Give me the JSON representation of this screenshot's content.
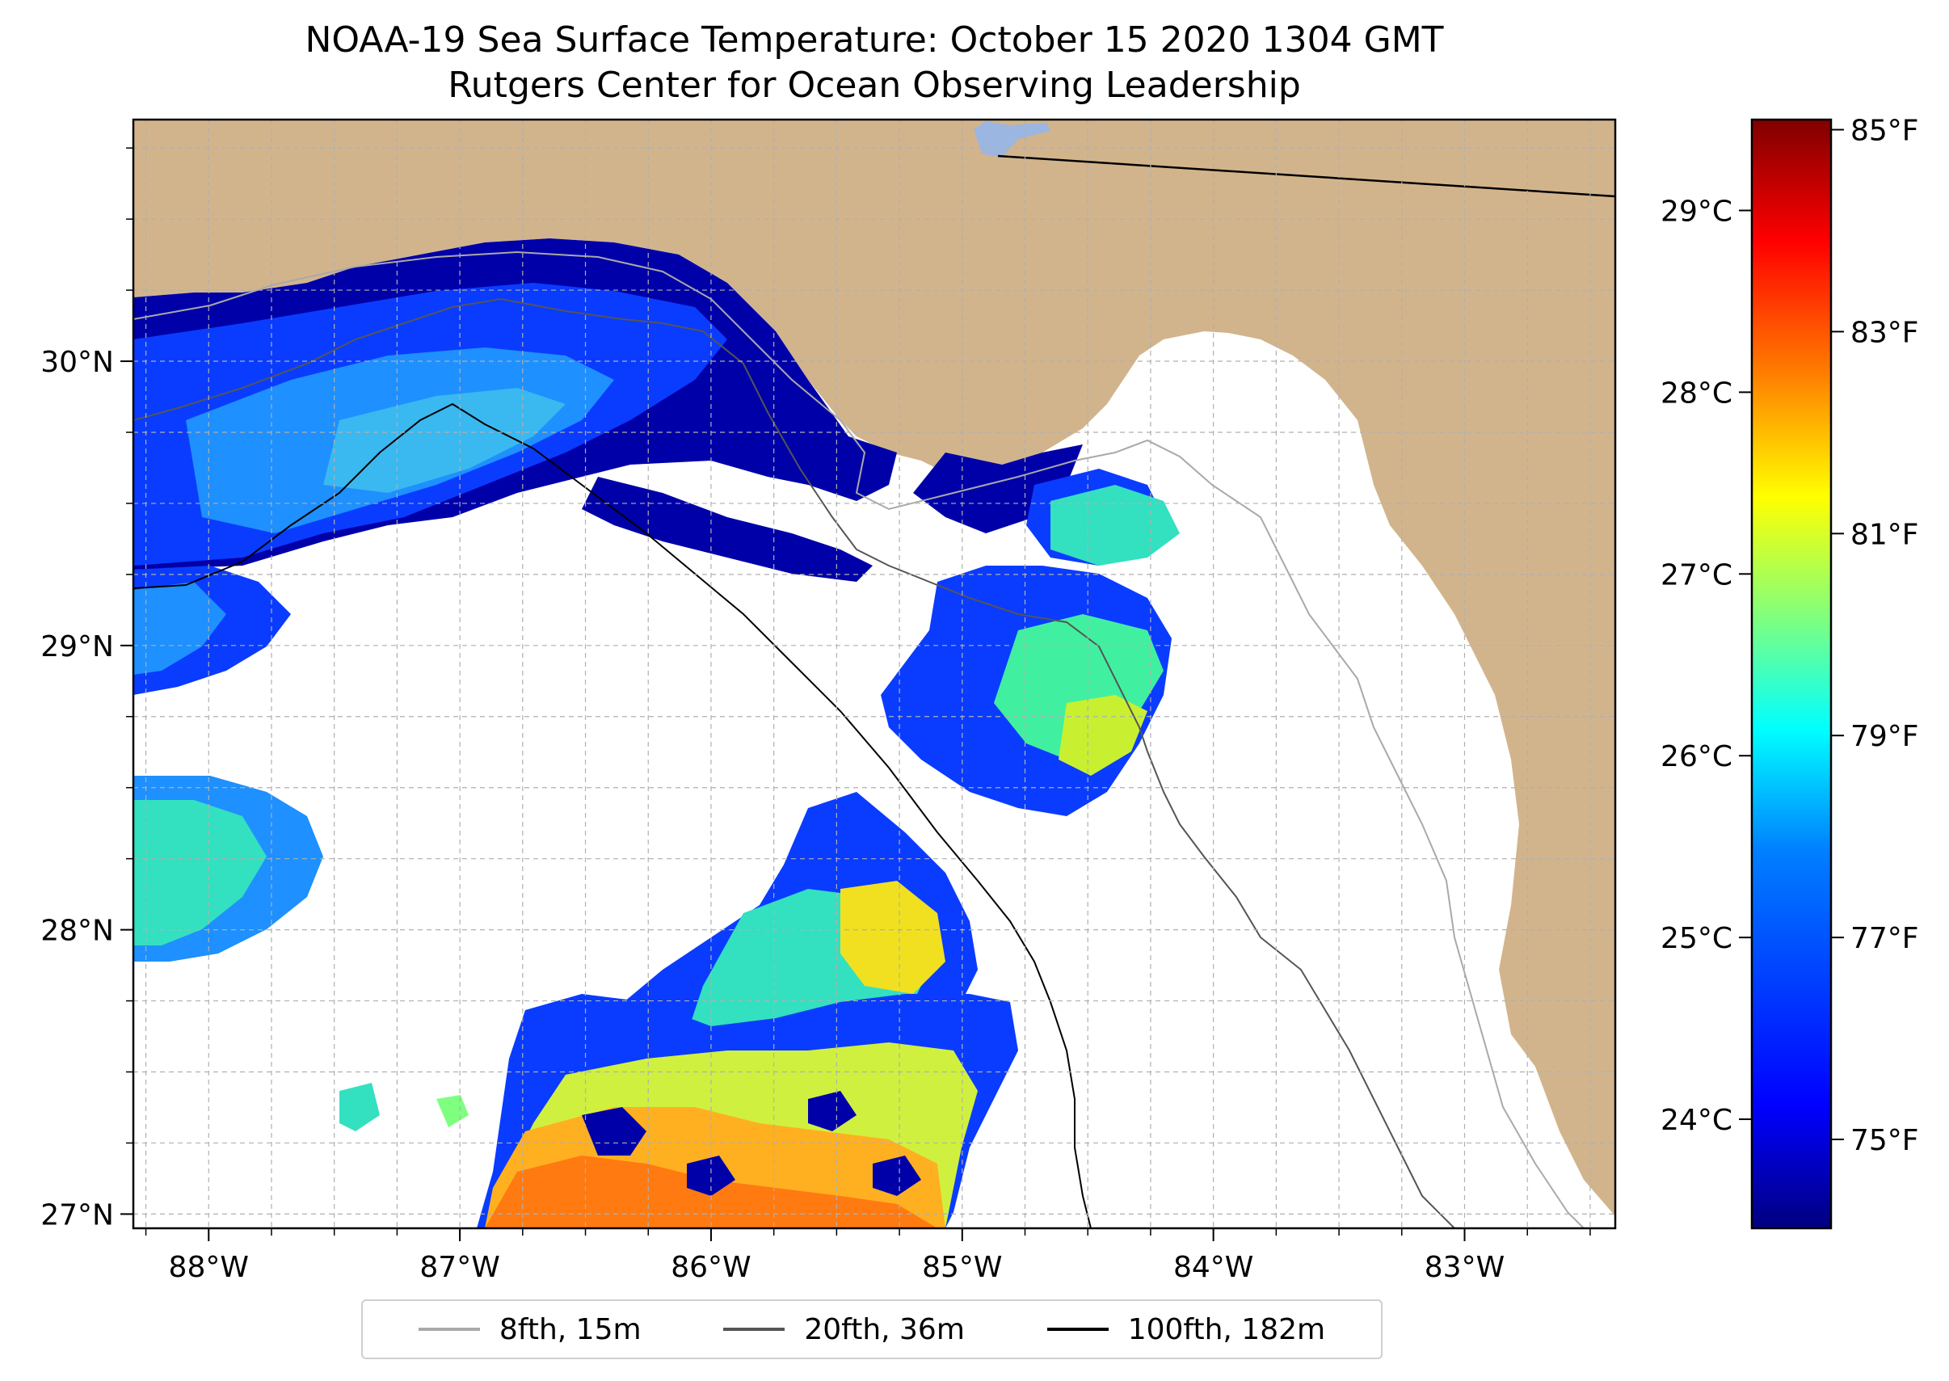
{
  "title": {
    "line1": "NOAA-19 Sea Surface Temperature: October 15 2020 1304 GMT",
    "line2": "Rutgers Center for Ocean Observing Leadership"
  },
  "map": {
    "lon_range": [
      -88.3,
      -82.4
    ],
    "lat_range": [
      26.95,
      30.85
    ],
    "lon_ticks": [
      {
        "value": -88,
        "label": "88°W"
      },
      {
        "value": -87,
        "label": "87°W"
      },
      {
        "value": -86,
        "label": "86°W"
      },
      {
        "value": -85,
        "label": "85°W"
      },
      {
        "value": -84,
        "label": "84°W"
      },
      {
        "value": -83,
        "label": "83°W"
      }
    ],
    "lat_ticks": [
      {
        "value": 27,
        "label": "27°N"
      },
      {
        "value": 28,
        "label": "28°N"
      },
      {
        "value": 29,
        "label": "29°N"
      },
      {
        "value": 30,
        "label": "30°N"
      }
    ],
    "colors": {
      "land": "#d2b48c",
      "ocean_no_data": "#ffffff",
      "grid": "#b0b0b0",
      "lake": "#9bb6e0"
    }
  },
  "colorbar": {
    "celsius_ticks": [
      {
        "value": 24,
        "label": "24°C"
      },
      {
        "value": 25,
        "label": "25°C"
      },
      {
        "value": 26,
        "label": "26°C"
      },
      {
        "value": 27,
        "label": "27°C"
      },
      {
        "value": 28,
        "label": "28°C"
      },
      {
        "value": 29,
        "label": "29°C"
      }
    ],
    "fahrenheit_ticks": [
      {
        "value": 75,
        "label": "75°F"
      },
      {
        "value": 77,
        "label": "77°F"
      },
      {
        "value": 79,
        "label": "79°F"
      },
      {
        "value": 81,
        "label": "81°F"
      },
      {
        "value": 83,
        "label": "83°F"
      },
      {
        "value": 85,
        "label": "85°F"
      }
    ],
    "range_celsius": [
      23.4,
      29.5
    ],
    "colormap": [
      "#00007f",
      "#0000ff",
      "#007fff",
      "#00ffff",
      "#7fff7f",
      "#ffff00",
      "#ff7f00",
      "#ff0000",
      "#7f0000"
    ]
  },
  "legend": {
    "items": [
      {
        "label": "8fth, 15m",
        "color": "#a9a9a9"
      },
      {
        "label": "20fth, 36m",
        "color": "#555555"
      },
      {
        "label": "100fth, 182m",
        "color": "#000000"
      }
    ]
  }
}
